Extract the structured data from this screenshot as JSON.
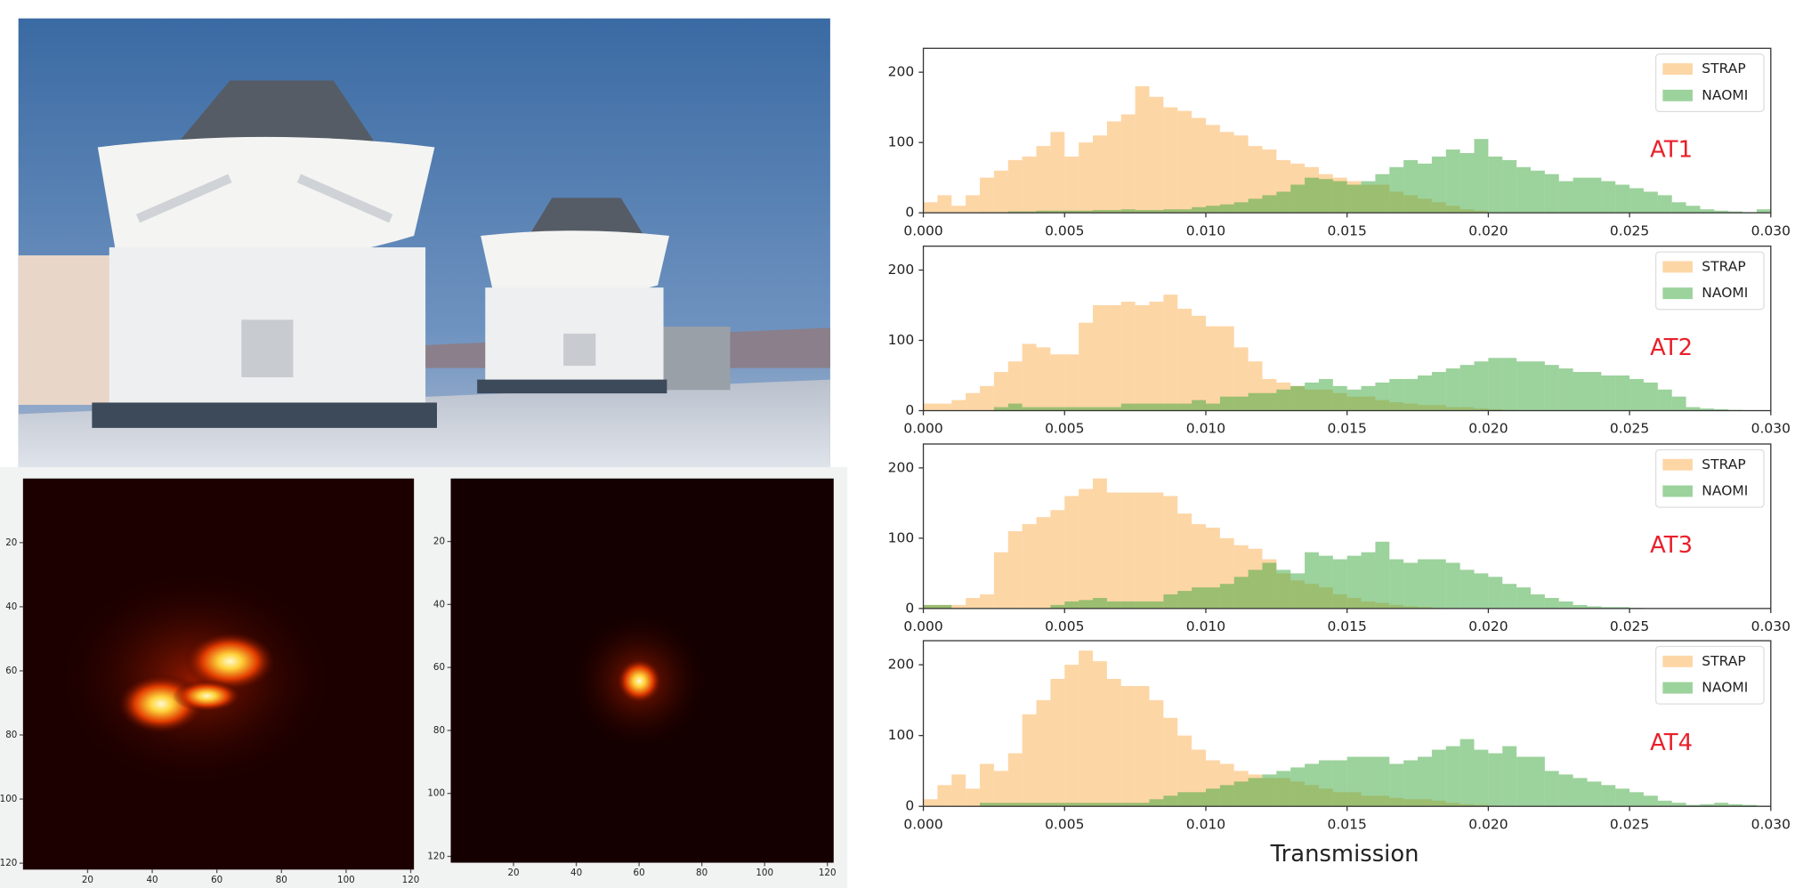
{
  "chart_data": [
    {
      "type": "image",
      "xlim": [
        0,
        121
      ],
      "ylim": [
        0,
        122
      ],
      "xticks": [
        20,
        40,
        60,
        80,
        100,
        120
      ],
      "yticks": [
        20,
        40,
        60,
        80,
        100,
        120
      ]
    },
    {
      "type": "image",
      "xlim": [
        0,
        122
      ],
      "ylim": [
        0,
        122
      ],
      "xticks": [
        20,
        40,
        60,
        80,
        100,
        120
      ],
      "yticks": [
        20,
        40,
        60,
        80,
        100,
        120
      ]
    },
    {
      "type": "histogram",
      "annotation": "AT1",
      "bins": [
        0,
        0.0005,
        0.001,
        0.0015,
        0.002,
        0.0025,
        0.003,
        0.0035,
        0.004,
        0.0045,
        0.005,
        0.0055,
        0.006,
        0.0065,
        0.007,
        0.0075,
        0.008,
        0.0085,
        0.009,
        0.0095,
        0.01,
        0.0105,
        0.011,
        0.0115,
        0.012,
        0.0125,
        0.013,
        0.0135,
        0.014,
        0.0145,
        0.015,
        0.0155,
        0.016,
        0.0165,
        0.017,
        0.0175,
        0.018,
        0.0185,
        0.019,
        0.0195,
        0.02,
        0.0205,
        0.021,
        0.0215,
        0.022,
        0.0225,
        0.023,
        0.0235,
        0.024,
        0.0245,
        0.025,
        0.0255,
        0.026,
        0.0265,
        0.027,
        0.0275,
        0.028,
        0.0285,
        0.029,
        0.0295,
        0.03
      ],
      "series": [
        {
          "name": "STRAP",
          "color": "#fcae4e",
          "values": [
            15,
            25,
            10,
            25,
            50,
            60,
            75,
            80,
            95,
            115,
            80,
            100,
            110,
            130,
            140,
            180,
            165,
            150,
            145,
            135,
            125,
            115,
            110,
            95,
            90,
            75,
            70,
            65,
            55,
            50,
            45,
            40,
            40,
            30,
            25,
            20,
            15,
            10,
            5,
            3,
            0,
            0,
            0,
            0,
            0,
            0,
            0,
            0,
            0,
            0,
            0,
            0,
            0,
            0,
            0,
            0,
            0,
            0,
            0,
            0
          ]
        },
        {
          "name": "NAOMI",
          "color": "#3aa53a",
          "values": [
            0,
            0,
            0,
            0,
            1,
            1,
            2,
            2,
            3,
            3,
            3,
            3,
            4,
            4,
            5,
            4,
            4,
            5,
            5,
            8,
            10,
            12,
            15,
            20,
            25,
            30,
            40,
            50,
            48,
            45,
            40,
            45,
            55,
            65,
            75,
            70,
            80,
            90,
            85,
            105,
            80,
            75,
            65,
            60,
            55,
            45,
            50,
            50,
            45,
            40,
            35,
            30,
            25,
            15,
            10,
            5,
            3,
            2,
            1,
            5
          ]
        }
      ],
      "xlim": [
        0,
        0.03
      ],
      "ylim": [
        0,
        234
      ],
      "xticks": [
        {
          "value": 0,
          "label": "0.000"
        },
        0.005,
        {
          "value": 0.01,
          "label": "0.010"
        },
        0.015,
        {
          "value": 0.02,
          "label": "0.020"
        },
        0.025,
        {
          "value": 0.03,
          "label": "0.030"
        }
      ],
      "yticks": [
        0,
        100,
        200
      ]
    },
    {
      "type": "histogram",
      "annotation": "AT2",
      "bins": [
        0,
        0.0005,
        0.001,
        0.0015,
        0.002,
        0.0025,
        0.003,
        0.0035,
        0.004,
        0.0045,
        0.005,
        0.0055,
        0.006,
        0.0065,
        0.007,
        0.0075,
        0.008,
        0.0085,
        0.009,
        0.0095,
        0.01,
        0.0105,
        0.011,
        0.0115,
        0.012,
        0.0125,
        0.013,
        0.0135,
        0.014,
        0.0145,
        0.015,
        0.0155,
        0.016,
        0.0165,
        0.017,
        0.0175,
        0.018,
        0.0185,
        0.019,
        0.0195,
        0.02,
        0.0205,
        0.021,
        0.0215,
        0.022,
        0.0225,
        0.023,
        0.0235,
        0.024,
        0.0245,
        0.025,
        0.0255,
        0.026,
        0.0265,
        0.027,
        0.0275,
        0.028,
        0.0285,
        0.029,
        0.0295,
        0.03
      ],
      "series": [
        {
          "name": "STRAP",
          "color": "#fcae4e",
          "values": [
            10,
            10,
            15,
            25,
            35,
            55,
            70,
            95,
            90,
            80,
            80,
            125,
            150,
            150,
            155,
            150,
            155,
            165,
            145,
            135,
            120,
            120,
            90,
            70,
            45,
            40,
            35,
            30,
            30,
            25,
            20,
            20,
            15,
            12,
            10,
            8,
            8,
            5,
            5,
            3,
            2,
            1,
            0,
            0,
            0,
            0,
            0,
            0,
            0,
            0,
            0,
            0,
            0,
            0,
            0,
            0,
            0,
            0,
            0,
            0
          ]
        },
        {
          "name": "NAOMI",
          "color": "#3aa53a",
          "values": [
            0,
            0,
            0,
            0,
            0,
            5,
            10,
            5,
            5,
            5,
            5,
            5,
            5,
            5,
            10,
            10,
            10,
            10,
            10,
            15,
            10,
            20,
            20,
            25,
            25,
            30,
            35,
            40,
            45,
            35,
            30,
            35,
            40,
            45,
            45,
            50,
            55,
            60,
            65,
            70,
            75,
            75,
            70,
            70,
            65,
            60,
            55,
            55,
            50,
            50,
            45,
            40,
            30,
            20,
            5,
            3,
            2,
            1,
            0,
            0
          ]
        }
      ],
      "xlim": [
        0,
        0.03
      ],
      "ylim": [
        0,
        234
      ],
      "xticks": [
        {
          "value": 0,
          "label": "0.000"
        },
        0.005,
        {
          "value": 0.01,
          "label": "0.010"
        },
        0.015,
        {
          "value": 0.02,
          "label": "0.020"
        },
        0.025,
        {
          "value": 0.03,
          "label": "0.030"
        }
      ],
      "yticks": [
        0,
        100,
        200
      ]
    },
    {
      "type": "histogram",
      "annotation": "AT3",
      "bins": [
        0,
        0.0005,
        0.001,
        0.0015,
        0.002,
        0.0025,
        0.003,
        0.0035,
        0.004,
        0.0045,
        0.005,
        0.0055,
        0.006,
        0.0065,
        0.007,
        0.0075,
        0.008,
        0.0085,
        0.009,
        0.0095,
        0.01,
        0.0105,
        0.011,
        0.0115,
        0.012,
        0.0125,
        0.013,
        0.0135,
        0.014,
        0.0145,
        0.015,
        0.0155,
        0.016,
        0.0165,
        0.017,
        0.0175,
        0.018,
        0.0185,
        0.019,
        0.0195,
        0.02,
        0.0205,
        0.021,
        0.0215,
        0.022,
        0.0225,
        0.023,
        0.0235,
        0.024,
        0.0245,
        0.025,
        0.0255,
        0.026,
        0.0265,
        0.027,
        0.0275,
        0.028,
        0.0285,
        0.029,
        0.0295,
        0.03
      ],
      "series": [
        {
          "name": "STRAP",
          "color": "#fcae4e",
          "values": [
            5,
            5,
            5,
            15,
            20,
            80,
            110,
            120,
            130,
            140,
            160,
            170,
            185,
            165,
            165,
            165,
            165,
            160,
            135,
            120,
            115,
            100,
            90,
            85,
            70,
            50,
            40,
            35,
            30,
            20,
            15,
            10,
            8,
            5,
            3,
            2,
            1,
            0,
            0,
            0,
            0,
            0,
            0,
            0,
            0,
            0,
            0,
            0,
            0,
            0,
            0,
            0,
            0,
            0,
            0,
            0,
            0,
            0,
            0,
            0
          ]
        },
        {
          "name": "NAOMI",
          "color": "#3aa53a",
          "values": [
            5,
            5,
            0,
            0,
            0,
            0,
            0,
            0,
            0,
            5,
            10,
            12,
            15,
            10,
            10,
            10,
            10,
            20,
            25,
            30,
            30,
            35,
            45,
            55,
            65,
            55,
            50,
            80,
            75,
            70,
            75,
            80,
            95,
            70,
            65,
            70,
            70,
            65,
            55,
            50,
            45,
            35,
            30,
            20,
            15,
            10,
            5,
            3,
            2,
            2,
            1,
            0,
            0,
            0,
            0,
            0,
            0,
            0,
            0,
            0
          ]
        }
      ],
      "xlim": [
        0,
        0.03
      ],
      "ylim": [
        0,
        234
      ],
      "xticks": [
        {
          "value": 0,
          "label": "0.000"
        },
        0.005,
        {
          "value": 0.01,
          "label": "0.010"
        },
        0.015,
        {
          "value": 0.02,
          "label": "0.020"
        },
        0.025,
        {
          "value": 0.03,
          "label": "0.030"
        }
      ],
      "yticks": [
        0,
        100,
        200
      ]
    },
    {
      "type": "histogram",
      "annotation": "AT4",
      "xlabel": "Transmission",
      "bins": [
        0,
        0.0005,
        0.001,
        0.0015,
        0.002,
        0.0025,
        0.003,
        0.0035,
        0.004,
        0.0045,
        0.005,
        0.0055,
        0.006,
        0.0065,
        0.007,
        0.0075,
        0.008,
        0.0085,
        0.009,
        0.0095,
        0.01,
        0.0105,
        0.011,
        0.0115,
        0.012,
        0.0125,
        0.013,
        0.0135,
        0.014,
        0.0145,
        0.015,
        0.0155,
        0.016,
        0.0165,
        0.017,
        0.0175,
        0.018,
        0.0185,
        0.019,
        0.0195,
        0.02,
        0.0205,
        0.021,
        0.0215,
        0.022,
        0.0225,
        0.023,
        0.0235,
        0.024,
        0.0245,
        0.025,
        0.0255,
        0.026,
        0.0265,
        0.027,
        0.0275,
        0.028,
        0.0285,
        0.029,
        0.0295,
        0.03
      ],
      "series": [
        {
          "name": "STRAP",
          "color": "#fcae4e",
          "values": [
            10,
            30,
            45,
            25,
            60,
            50,
            75,
            130,
            150,
            180,
            200,
            220,
            205,
            180,
            170,
            170,
            150,
            125,
            100,
            80,
            65,
            60,
            50,
            45,
            40,
            40,
            35,
            30,
            25,
            20,
            20,
            15,
            15,
            12,
            10,
            10,
            8,
            5,
            3,
            2,
            1,
            0,
            0,
            0,
            0,
            0,
            0,
            0,
            0,
            0,
            0,
            0,
            0,
            0,
            0,
            0,
            0,
            0,
            0,
            0
          ]
        },
        {
          "name": "NAOMI",
          "color": "#3aa53a",
          "values": [
            0,
            0,
            0,
            0,
            5,
            5,
            5,
            5,
            5,
            5,
            5,
            5,
            5,
            5,
            5,
            5,
            10,
            15,
            20,
            20,
            25,
            30,
            35,
            40,
            45,
            50,
            55,
            60,
            65,
            65,
            70,
            70,
            70,
            60,
            65,
            70,
            80,
            85,
            95,
            80,
            75,
            85,
            70,
            70,
            50,
            45,
            40,
            35,
            30,
            25,
            20,
            15,
            8,
            5,
            2,
            3,
            5,
            3,
            2,
            1
          ]
        }
      ],
      "xlim": [
        0,
        0.03
      ],
      "ylim": [
        0,
        234
      ],
      "xticks": [
        {
          "value": 0,
          "label": "0.000"
        },
        0.005,
        {
          "value": 0.01,
          "label": "0.010"
        },
        0.015,
        {
          "value": 0.02,
          "label": "0.020"
        },
        0.025,
        {
          "value": 0.03,
          "label": "0.030"
        }
      ],
      "yticks": [
        0,
        100,
        200
      ]
    }
  ]
}
